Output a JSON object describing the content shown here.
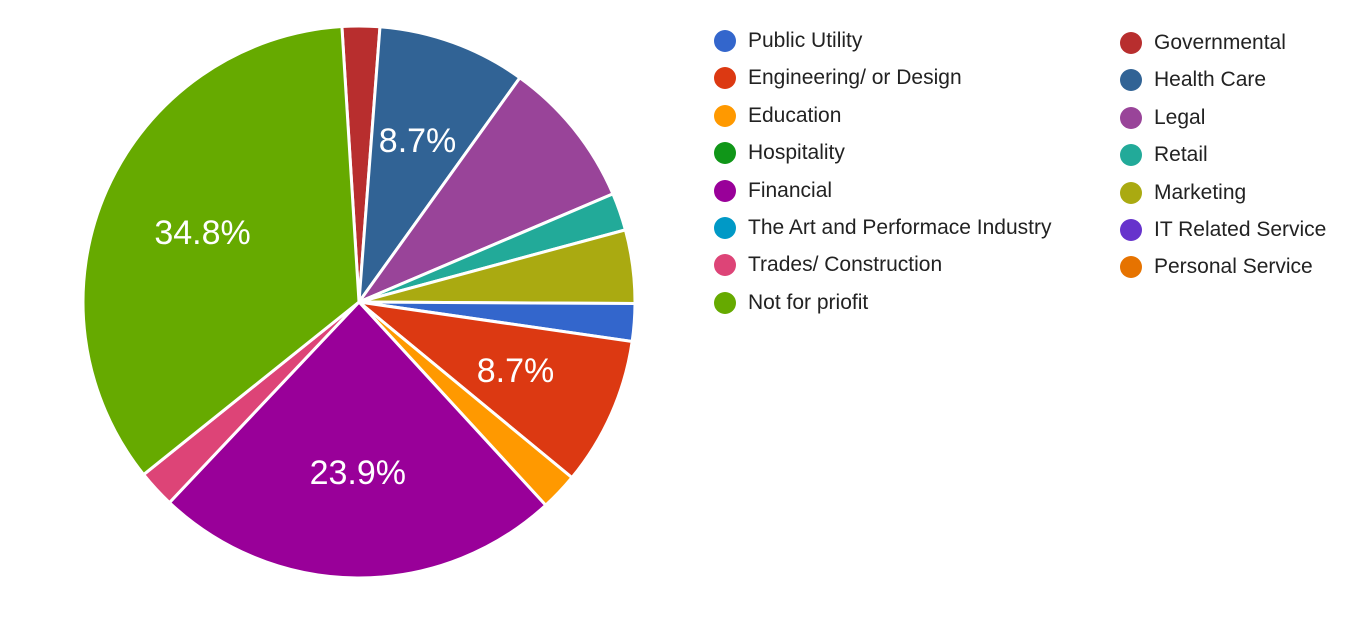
{
  "chart_data": {
    "type": "pie",
    "slices": [
      {
        "label": "Public Utility",
        "value": 2.2,
        "color": "#3366cc",
        "display": ""
      },
      {
        "label": "Engineering/ or Design",
        "value": 8.7,
        "color": "#dc3912",
        "display": "8.7%"
      },
      {
        "label": "Education",
        "value": 2.2,
        "color": "#ff9900",
        "display": ""
      },
      {
        "label": "Hospitality",
        "value": 0,
        "color": "#109618",
        "display": ""
      },
      {
        "label": "Financial",
        "value": 23.9,
        "color": "#990099",
        "display": "23.9%"
      },
      {
        "label": "The Art and Performace Industry",
        "value": 0,
        "color": "#0099c6",
        "display": ""
      },
      {
        "label": "Trades/ Construction",
        "value": 2.2,
        "color": "#dd4477",
        "display": ""
      },
      {
        "label": "Not for priofit",
        "value": 34.8,
        "color": "#66aa00",
        "display": "34.8%"
      },
      {
        "label": "Governmental",
        "value": 2.2,
        "color": "#b82e2e",
        "display": ""
      },
      {
        "label": "Health Care",
        "value": 8.7,
        "color": "#316395",
        "display": "8.7%"
      },
      {
        "label": "Legal",
        "value": 8.7,
        "color": "#994499",
        "display": ""
      },
      {
        "label": "Retail",
        "value": 2.2,
        "color": "#22aa99",
        "display": ""
      },
      {
        "label": "Marketing",
        "value": 4.3,
        "color": "#aaaa11",
        "display": ""
      },
      {
        "label": "IT Related Service",
        "value": 0,
        "color": "#6633cc",
        "display": ""
      },
      {
        "label": "Personal Service",
        "value": 0,
        "color": "#e67300",
        "display": ""
      }
    ],
    "legend": "right, two columns"
  }
}
